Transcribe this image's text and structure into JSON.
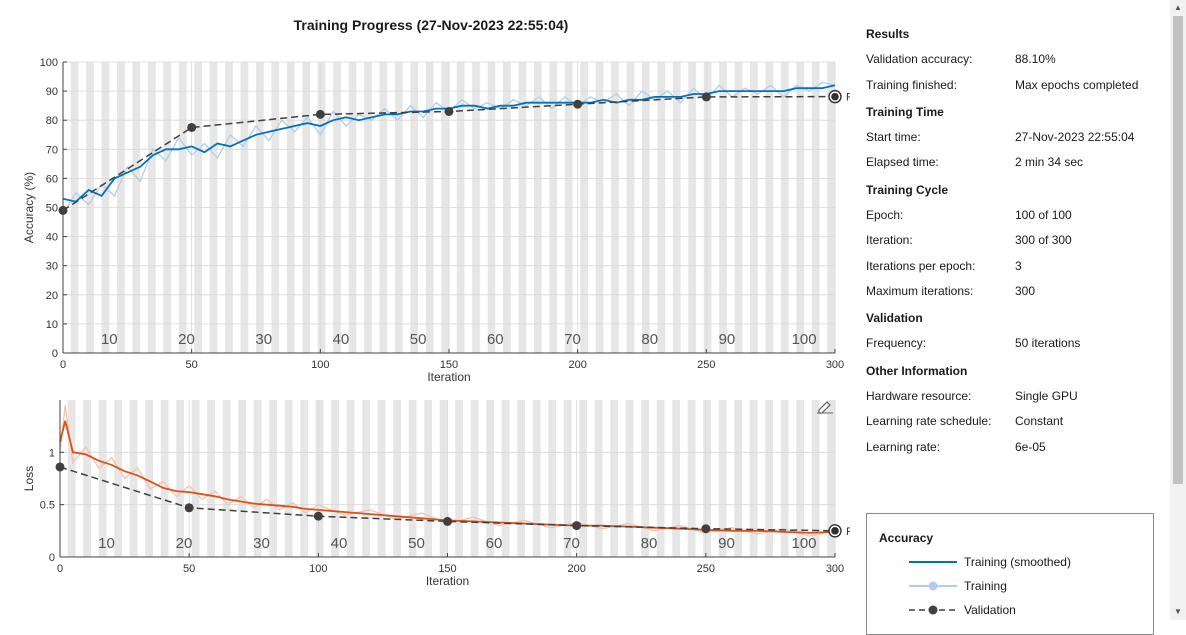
{
  "title": "Training Progress (27-Nov-2023 22:55:04)",
  "accuracy_plot": {
    "ylabel": "Accuracy (%)",
    "xlabel": "Iteration",
    "final_label": "Final"
  },
  "loss_plot": {
    "ylabel": "Loss",
    "xlabel": "Iteration",
    "final_label": "Final"
  },
  "info": {
    "results": {
      "heading": "Results",
      "rows": [
        {
          "label": "Validation accuracy:",
          "value": "88.10%"
        },
        {
          "label": "Training finished:",
          "value": "Max epochs completed"
        }
      ]
    },
    "time": {
      "heading": "Training Time",
      "rows": [
        {
          "label": "Start time:",
          "value": "27-Nov-2023 22:55:04"
        },
        {
          "label": "Elapsed time:",
          "value": "2 min 34 sec"
        }
      ]
    },
    "cycle": {
      "heading": "Training Cycle",
      "rows": [
        {
          "label": "Epoch:",
          "value": "100 of 100"
        },
        {
          "label": "Iteration:",
          "value": "300 of 300"
        },
        {
          "label": "Iterations per epoch:",
          "value": "3"
        },
        {
          "label": "Maximum iterations:",
          "value": "300"
        }
      ]
    },
    "validation": {
      "heading": "Validation",
      "rows": [
        {
          "label": "Frequency:",
          "value": "50 iterations"
        }
      ]
    },
    "other": {
      "heading": "Other Information",
      "rows": [
        {
          "label": "Hardware resource:",
          "value": "Single GPU"
        },
        {
          "label": "Learning rate schedule:",
          "value": "Constant"
        },
        {
          "label": "Learning rate:",
          "value": "6e-05"
        }
      ]
    }
  },
  "legend": {
    "title": "Accuracy",
    "items": [
      "Training (smoothed)",
      "Training",
      "Validation"
    ]
  },
  "colors": {
    "acc_smoothed": "#0072bd",
    "acc_raw": "#b3cde6",
    "loss_smoothed": "#d95319",
    "loss_raw": "#f3c2ad",
    "validation": "#404040",
    "epoch_band": "#e6e6e6"
  },
  "chart_data": [
    {
      "type": "line",
      "title": "Training Progress (27-Nov-2023 22:55:04)",
      "xlabel": "Iteration",
      "ylabel": "Accuracy (%)",
      "xlim": [
        0,
        300
      ],
      "ylim": [
        0,
        100
      ],
      "xticks": [
        0,
        50,
        100,
        150,
        200,
        250,
        300
      ],
      "yticks": [
        0,
        10,
        20,
        30,
        40,
        50,
        60,
        70,
        80,
        90,
        100
      ],
      "epoch_labels": [
        10,
        20,
        30,
        40,
        50,
        60,
        70,
        80,
        90,
        100
      ],
      "grid": true,
      "series": [
        {
          "name": "Training (smoothed)",
          "x": [
            0,
            5,
            10,
            15,
            20,
            25,
            30,
            35,
            40,
            45,
            50,
            55,
            60,
            65,
            70,
            75,
            80,
            85,
            90,
            95,
            100,
            105,
            110,
            115,
            120,
            125,
            130,
            135,
            140,
            145,
            150,
            155,
            160,
            165,
            170,
            175,
            180,
            185,
            190,
            195,
            200,
            205,
            210,
            215,
            220,
            225,
            230,
            235,
            240,
            245,
            250,
            255,
            260,
            265,
            270,
            275,
            280,
            285,
            290,
            295,
            300
          ],
          "values": [
            53,
            52,
            56,
            54,
            60,
            62,
            64,
            68,
            70,
            70,
            71,
            69,
            72,
            71,
            73,
            75,
            76,
            77,
            78,
            79,
            78,
            80,
            81,
            80,
            81,
            82,
            82,
            83,
            83,
            84,
            84,
            85,
            85,
            84,
            85,
            85,
            86,
            86,
            86,
            86,
            86,
            86,
            87,
            86,
            87,
            87,
            88,
            88,
            88,
            89,
            89,
            90,
            90,
            90,
            90,
            90,
            90,
            91,
            91,
            91,
            92
          ]
        },
        {
          "name": "Training",
          "x": [
            0,
            5,
            10,
            15,
            20,
            25,
            30,
            35,
            40,
            45,
            50,
            55,
            60,
            65,
            70,
            75,
            80,
            85,
            90,
            95,
            100,
            105,
            110,
            115,
            120,
            125,
            130,
            135,
            140,
            145,
            150,
            155,
            160,
            165,
            170,
            175,
            180,
            185,
            190,
            195,
            200,
            205,
            210,
            215,
            220,
            225,
            230,
            235,
            240,
            245,
            250,
            255,
            260,
            265,
            270,
            275,
            280,
            285,
            290,
            295,
            300
          ],
          "values": [
            48,
            55,
            51,
            58,
            54,
            64,
            59,
            70,
            66,
            74,
            68,
            72,
            67,
            75,
            71,
            78,
            73,
            80,
            76,
            81,
            75,
            83,
            78,
            82,
            80,
            84,
            80,
            85,
            81,
            86,
            83,
            87,
            84,
            86,
            84,
            87,
            85,
            88,
            84,
            88,
            85,
            88,
            86,
            89,
            85,
            90,
            87,
            90,
            86,
            91,
            87,
            92,
            88,
            91,
            89,
            92,
            88,
            92,
            90,
            93,
            92
          ]
        },
        {
          "name": "Validation",
          "x": [
            0,
            50,
            100,
            150,
            200,
            250,
            300
          ],
          "values": [
            49,
            77.5,
            82,
            83,
            85.5,
            88,
            88.1
          ]
        }
      ]
    },
    {
      "type": "line",
      "xlabel": "Iteration",
      "ylabel": "Loss",
      "xlim": [
        0,
        300
      ],
      "ylim": [
        0,
        1.5
      ],
      "xticks": [
        0,
        50,
        100,
        150,
        200,
        250,
        300
      ],
      "yticks": [
        0,
        0.5,
        1
      ],
      "epoch_labels": [
        10,
        20,
        30,
        40,
        50,
        60,
        70,
        80,
        90,
        100
      ],
      "grid": true,
      "series": [
        {
          "name": "Training (smoothed)",
          "x": [
            0,
            2,
            5,
            10,
            15,
            20,
            25,
            30,
            35,
            40,
            45,
            50,
            55,
            60,
            65,
            70,
            75,
            80,
            85,
            90,
            95,
            100,
            110,
            120,
            130,
            140,
            150,
            160,
            170,
            180,
            190,
            200,
            210,
            220,
            230,
            240,
            250,
            260,
            270,
            280,
            290,
            300
          ],
          "values": [
            1.1,
            1.3,
            1.0,
            0.98,
            0.92,
            0.88,
            0.82,
            0.78,
            0.72,
            0.66,
            0.63,
            0.62,
            0.6,
            0.58,
            0.55,
            0.53,
            0.51,
            0.5,
            0.49,
            0.48,
            0.46,
            0.45,
            0.43,
            0.41,
            0.39,
            0.37,
            0.35,
            0.34,
            0.33,
            0.32,
            0.31,
            0.3,
            0.3,
            0.29,
            0.28,
            0.27,
            0.26,
            0.25,
            0.25,
            0.24,
            0.23,
            0.24
          ]
        },
        {
          "name": "Training",
          "x": [
            0,
            2,
            5,
            10,
            15,
            20,
            25,
            30,
            35,
            40,
            45,
            50,
            55,
            60,
            65,
            70,
            75,
            80,
            85,
            90,
            95,
            100,
            110,
            120,
            130,
            140,
            150,
            160,
            170,
            180,
            190,
            200,
            210,
            220,
            230,
            240,
            250,
            260,
            270,
            280,
            290,
            300
          ],
          "values": [
            1.0,
            1.45,
            0.9,
            1.05,
            0.85,
            0.95,
            0.75,
            0.85,
            0.65,
            0.72,
            0.58,
            0.68,
            0.55,
            0.63,
            0.5,
            0.58,
            0.47,
            0.55,
            0.45,
            0.52,
            0.42,
            0.5,
            0.4,
            0.45,
            0.36,
            0.42,
            0.32,
            0.38,
            0.3,
            0.35,
            0.28,
            0.33,
            0.27,
            0.32,
            0.25,
            0.3,
            0.23,
            0.28,
            0.22,
            0.27,
            0.2,
            0.25
          ]
        },
        {
          "name": "Validation",
          "x": [
            0,
            50,
            100,
            150,
            200,
            250,
            300
          ],
          "values": [
            0.86,
            0.47,
            0.39,
            0.34,
            0.3,
            0.27,
            0.25
          ]
        }
      ]
    }
  ]
}
